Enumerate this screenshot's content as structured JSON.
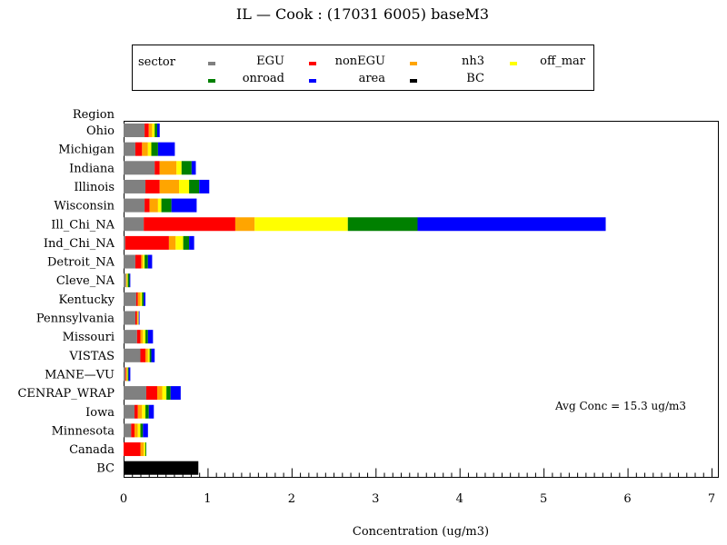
{
  "chart_data": {
    "type": "bar",
    "orientation": "horizontal",
    "stacked": true,
    "title": "IL  —  Cook : (17031 6005) baseM3",
    "xlabel": "Concentration  (ug/m3)",
    "ylabel": "Region",
    "xlim": [
      0,
      7
    ],
    "x_ticks": [
      "0",
      "1",
      "2",
      "3",
      "4",
      "5",
      "6",
      "7"
    ],
    "grid": false,
    "legend": {
      "title": "sector",
      "placement": "top",
      "entries": [
        {
          "name": "EGU",
          "color": "#808080"
        },
        {
          "name": "nonEGU",
          "color": "#ff0000"
        },
        {
          "name": "nh3",
          "color": "#ffa500"
        },
        {
          "name": "off_mar",
          "color": "#ffff00"
        },
        {
          "name": "onroad",
          "color": "#008000"
        },
        {
          "name": "area",
          "color": "#0000ff"
        },
        {
          "name": "BC",
          "color": "#000000"
        }
      ]
    },
    "annotation": "Avg Conc  =  15.3 ug/m3",
    "categories": [
      "Ohio",
      "Michigan",
      "Indiana",
      "Illinois",
      "Wisconsin",
      "Ill_Chi_NA",
      "Ind_Chi_NA",
      "Detroit_NA",
      "Cleve_NA",
      "Kentucky",
      "Pennsylvania",
      "Missouri",
      "VISTAS",
      "MANE—VU",
      "CENRAP_WRAP",
      "Iowa",
      "Minnesota",
      "Canada",
      "BC"
    ],
    "series": [
      {
        "name": "EGU",
        "color": "#808080",
        "values": [
          0.25,
          0.14,
          0.37,
          0.26,
          0.25,
          0.24,
          0.02,
          0.14,
          0.03,
          0.15,
          0.14,
          0.16,
          0.2,
          0.02,
          0.27,
          0.13,
          0.09,
          0.0,
          0.0
        ]
      },
      {
        "name": "nonEGU",
        "color": "#ff0000",
        "values": [
          0.05,
          0.08,
          0.06,
          0.17,
          0.06,
          1.09,
          0.52,
          0.07,
          0.0,
          0.02,
          0.02,
          0.04,
          0.06,
          0.01,
          0.13,
          0.04,
          0.04,
          0.2,
          0.0
        ]
      },
      {
        "name": "nh3",
        "color": "#ffa500",
        "values": [
          0.04,
          0.07,
          0.2,
          0.23,
          0.1,
          0.23,
          0.08,
          0.02,
          0.01,
          0.03,
          0.01,
          0.03,
          0.03,
          0.01,
          0.06,
          0.05,
          0.04,
          0.04,
          0.0
        ]
      },
      {
        "name": "off_mar",
        "color": "#ffff00",
        "values": [
          0.03,
          0.04,
          0.06,
          0.12,
          0.04,
          1.11,
          0.09,
          0.02,
          0.01,
          0.02,
          0.01,
          0.03,
          0.02,
          0.01,
          0.05,
          0.04,
          0.03,
          0.02,
          0.0
        ]
      },
      {
        "name": "onroad",
        "color": "#008000",
        "values": [
          0.03,
          0.08,
          0.12,
          0.12,
          0.12,
          0.83,
          0.07,
          0.04,
          0.02,
          0.02,
          0.0,
          0.03,
          0.02,
          0.01,
          0.05,
          0.04,
          0.03,
          0.01,
          0.0
        ]
      },
      {
        "name": "area",
        "color": "#0000ff",
        "values": [
          0.03,
          0.2,
          0.05,
          0.12,
          0.3,
          2.24,
          0.06,
          0.05,
          0.01,
          0.02,
          0.01,
          0.06,
          0.04,
          0.02,
          0.12,
          0.06,
          0.06,
          0.0,
          0.0
        ]
      },
      {
        "name": "BC",
        "color": "#000000",
        "values": [
          0,
          0,
          0,
          0,
          0,
          0,
          0,
          0,
          0,
          0,
          0,
          0,
          0,
          0,
          0,
          0,
          0,
          0,
          0.89
        ]
      }
    ]
  }
}
